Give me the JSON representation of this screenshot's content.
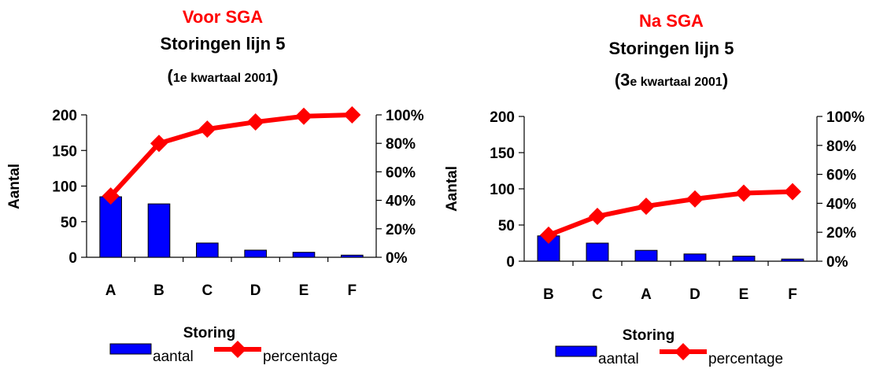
{
  "chart_data": [
    {
      "type": "bar",
      "title_top": "Voor SGA",
      "title": "Storingen lijn 5",
      "subtitle_open": "(",
      "subtitle_num": "1e kwartaal 2001",
      "subtitle_close": ")",
      "xlabel": "Storing",
      "ylabel": "Aantal",
      "categories": [
        "A",
        "B",
        "C",
        "D",
        "E",
        "F"
      ],
      "ylim": [
        0,
        200
      ],
      "y_ticks": [
        "0",
        "50",
        "100",
        "150",
        "200"
      ],
      "y_tick_values": [
        0,
        50,
        100,
        150,
        200
      ],
      "y2lim": [
        0,
        100
      ],
      "y2_ticks": [
        "0%",
        "20%",
        "40%",
        "60%",
        "80%",
        "100%"
      ],
      "y2_tick_values": [
        0,
        20,
        40,
        60,
        80,
        100
      ],
      "series": [
        {
          "name": "aantal",
          "kind": "bar",
          "color": "#0000ff",
          "values": [
            85,
            75,
            20,
            10,
            7,
            3
          ]
        },
        {
          "name": "percentage",
          "kind": "line",
          "color": "#ff0000",
          "axis": "right",
          "values": [
            43,
            80,
            90,
            95,
            99,
            100
          ]
        }
      ],
      "legend": "bottom"
    },
    {
      "type": "bar",
      "title_top": "Na  SGA",
      "title": "Storingen lijn 5",
      "subtitle_open": "(",
      "subtitle_big": "3",
      "subtitle_num": "e kwartaal 2001",
      "subtitle_close": ")",
      "xlabel": "Storing",
      "ylabel": "Aantal",
      "categories": [
        "B",
        "C",
        "A",
        "D",
        "E",
        "F"
      ],
      "ylim": [
        0,
        200
      ],
      "y_ticks": [
        "0",
        "50",
        "100",
        "150",
        "200"
      ],
      "y_tick_values": [
        0,
        50,
        100,
        150,
        200
      ],
      "y2lim": [
        0,
        100
      ],
      "y2_ticks": [
        "0%",
        "20%",
        "40%",
        "60%",
        "80%",
        "100%"
      ],
      "y2_tick_values": [
        0,
        20,
        40,
        60,
        80,
        100
      ],
      "series": [
        {
          "name": "aantal",
          "kind": "bar",
          "color": "#0000ff",
          "values": [
            35,
            25,
            15,
            10,
            7,
            3
          ]
        },
        {
          "name": "percentage",
          "kind": "line",
          "color": "#ff0000",
          "axis": "right",
          "values": [
            18,
            31,
            38,
            43,
            47,
            48
          ]
        }
      ],
      "legend": "bottom"
    }
  ]
}
